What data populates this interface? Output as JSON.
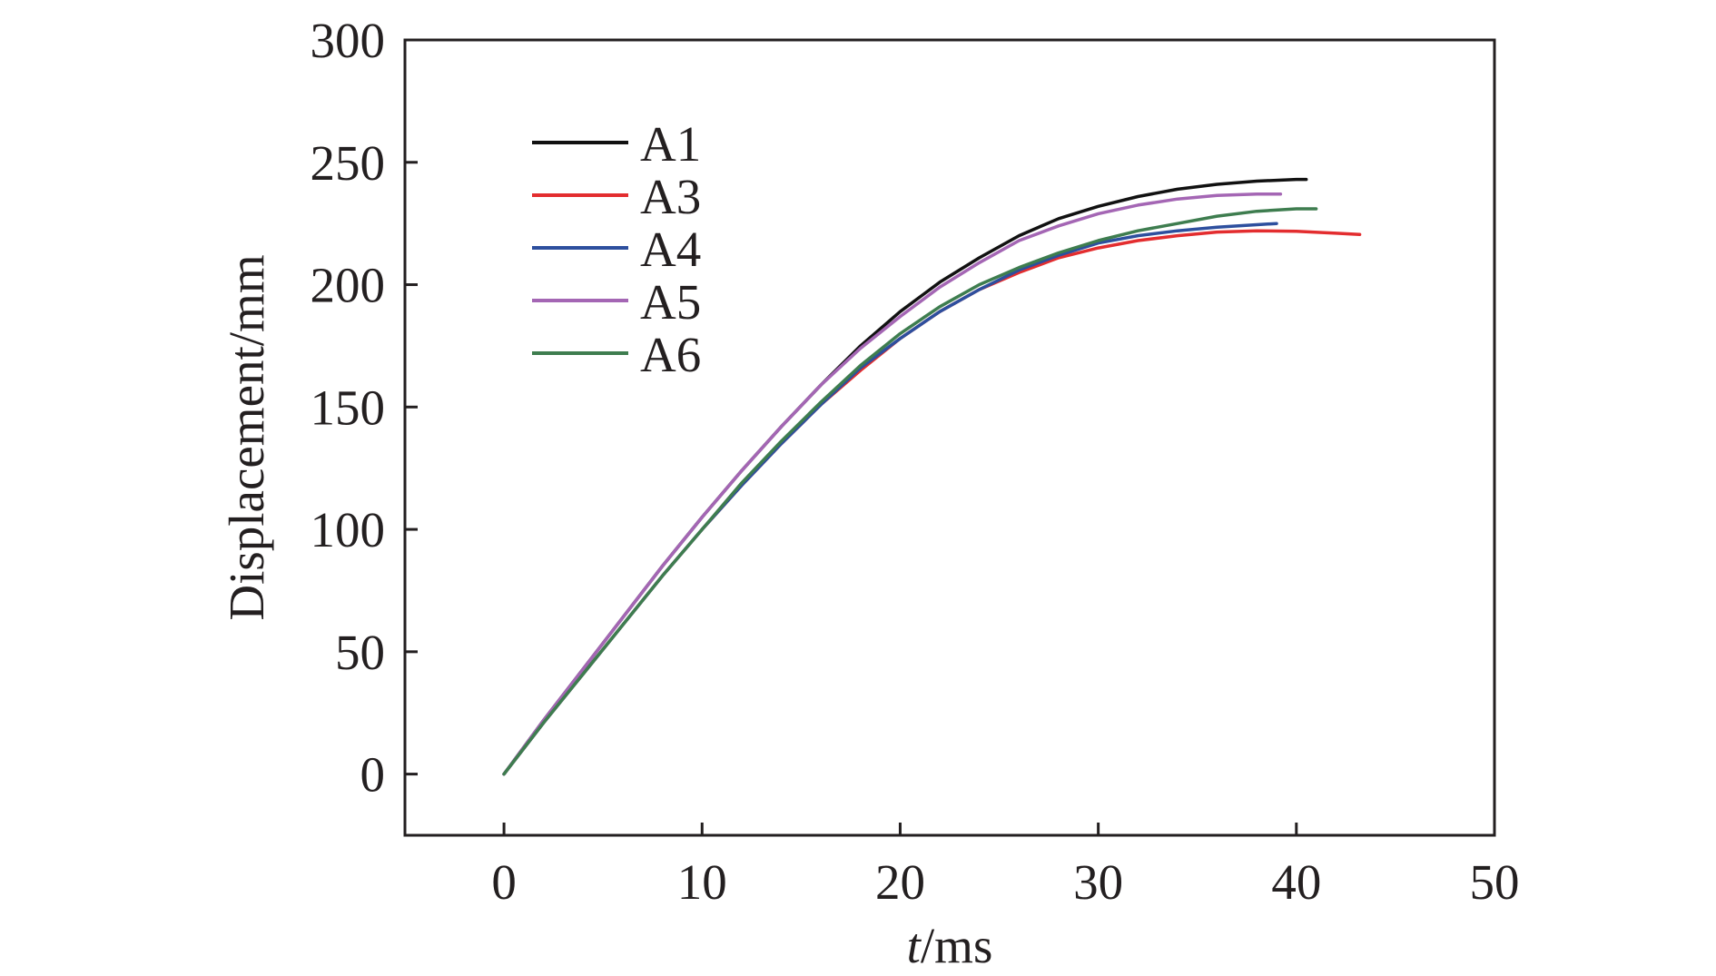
{
  "chart_data": {
    "type": "line",
    "xlabel_italic": "t",
    "xlabel_rest": "/ms",
    "ylabel": "Displacement/mm",
    "xlim": [
      -5,
      50
    ],
    "ylim": [
      -25,
      300
    ],
    "xticks": [
      0,
      10,
      20,
      30,
      40,
      50
    ],
    "yticks": [
      0,
      50,
      100,
      150,
      200,
      250,
      300
    ],
    "grid": false,
    "legend_position": "top-left",
    "series": [
      {
        "name": "A1",
        "color": "#111111",
        "x": [
          0,
          2,
          4,
          6,
          8,
          10,
          12,
          14,
          16,
          18,
          20,
          22,
          24,
          26,
          28,
          30,
          32,
          34,
          36,
          38,
          40,
          40.5
        ],
        "y": [
          0,
          22,
          43,
          64,
          85,
          105,
          124,
          142,
          159,
          175,
          189,
          201,
          211,
          220,
          227,
          232,
          236,
          239,
          241,
          242.3,
          243,
          243
        ]
      },
      {
        "name": "A3",
        "color": "#e32d2f",
        "x": [
          0,
          2,
          4,
          6,
          8,
          10,
          12,
          14,
          16,
          18,
          20,
          22,
          24,
          26,
          28,
          30,
          32,
          34,
          36,
          38,
          40,
          42,
          43.2
        ],
        "y": [
          0,
          21,
          41,
          61,
          81,
          100,
          118,
          135,
          151,
          165,
          178,
          189,
          198,
          205,
          211,
          215,
          218,
          220,
          221.5,
          222,
          221.8,
          221,
          220.5
        ]
      },
      {
        "name": "A4",
        "color": "#2d4f9e",
        "x": [
          0,
          2,
          4,
          6,
          8,
          10,
          12,
          14,
          16,
          18,
          20,
          22,
          24,
          26,
          28,
          30,
          32,
          34,
          36,
          38,
          39
        ],
        "y": [
          0,
          21,
          41,
          61,
          81,
          100,
          118,
          135,
          151,
          166,
          178,
          189,
          198,
          206,
          212,
          217,
          220,
          222,
          223.5,
          224.5,
          225
        ]
      },
      {
        "name": "A5",
        "color": "#a466b4",
        "x": [
          0,
          2,
          4,
          6,
          8,
          10,
          12,
          14,
          16,
          18,
          20,
          22,
          24,
          26,
          28,
          30,
          32,
          34,
          36,
          38,
          39.2
        ],
        "y": [
          0,
          22,
          43,
          64,
          85,
          105,
          124,
          142,
          159,
          174,
          187,
          199,
          209,
          218,
          224,
          229,
          232.5,
          235,
          236.5,
          237,
          237
        ]
      },
      {
        "name": "A6",
        "color": "#3e7d4f",
        "x": [
          0,
          2,
          4,
          6,
          8,
          10,
          12,
          14,
          16,
          18,
          20,
          22,
          24,
          26,
          28,
          30,
          32,
          34,
          36,
          38,
          40,
          41
        ],
        "y": [
          0,
          21,
          41,
          61,
          81,
          100,
          119,
          136,
          152,
          167,
          180,
          191,
          200,
          207,
          213,
          218,
          222,
          225,
          228,
          230,
          231,
          231
        ]
      }
    ]
  }
}
